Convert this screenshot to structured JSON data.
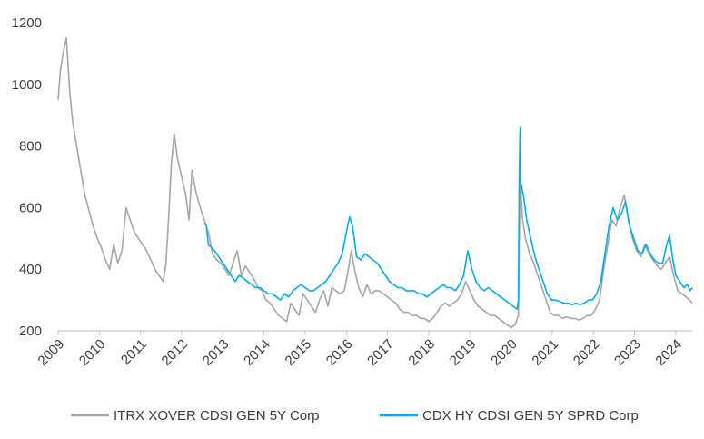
{
  "chart_data": {
    "type": "line",
    "title": "",
    "xlabel": "",
    "ylabel": "",
    "xlim": [
      2009.0,
      2024.4
    ],
    "ylim": [
      200,
      1200
    ],
    "y_ticks": [
      200,
      400,
      600,
      800,
      1000,
      1200
    ],
    "x_ticks": [
      2009,
      2010,
      2011,
      2012,
      2013,
      2014,
      2015,
      2016,
      2017,
      2018,
      2019,
      2020,
      2021,
      2022,
      2023,
      2024
    ],
    "grid": false,
    "legend_position": "bottom",
    "series": [
      {
        "name": "ITRX XOVER CDSI GEN 5Y Corp",
        "color": "#a6a6a6",
        "points": [
          [
            2009.0,
            950
          ],
          [
            2009.05,
            1040
          ],
          [
            2009.12,
            1100
          ],
          [
            2009.2,
            1150
          ],
          [
            2009.28,
            980
          ],
          [
            2009.35,
            880
          ],
          [
            2009.45,
            800
          ],
          [
            2009.55,
            720
          ],
          [
            2009.65,
            640
          ],
          [
            2009.75,
            590
          ],
          [
            2009.85,
            540
          ],
          [
            2009.95,
            500
          ],
          [
            2010.05,
            470
          ],
          [
            2010.15,
            430
          ],
          [
            2010.25,
            400
          ],
          [
            2010.35,
            480
          ],
          [
            2010.45,
            420
          ],
          [
            2010.55,
            460
          ],
          [
            2010.65,
            600
          ],
          [
            2010.75,
            560
          ],
          [
            2010.85,
            520
          ],
          [
            2010.95,
            500
          ],
          [
            2011.05,
            480
          ],
          [
            2011.15,
            460
          ],
          [
            2011.25,
            430
          ],
          [
            2011.35,
            400
          ],
          [
            2011.45,
            380
          ],
          [
            2011.55,
            360
          ],
          [
            2011.62,
            420
          ],
          [
            2011.68,
            560
          ],
          [
            2011.75,
            740
          ],
          [
            2011.82,
            840
          ],
          [
            2011.9,
            760
          ],
          [
            2012.0,
            700
          ],
          [
            2012.1,
            640
          ],
          [
            2012.18,
            560
          ],
          [
            2012.25,
            720
          ],
          [
            2012.35,
            650
          ],
          [
            2012.45,
            600
          ],
          [
            2012.55,
            560
          ],
          [
            2012.65,
            520
          ],
          [
            2012.75,
            450
          ],
          [
            2012.85,
            430
          ],
          [
            2012.95,
            420
          ],
          [
            2013.05,
            400
          ],
          [
            2013.15,
            380
          ],
          [
            2013.25,
            420
          ],
          [
            2013.35,
            460
          ],
          [
            2013.45,
            380
          ],
          [
            2013.55,
            410
          ],
          [
            2013.65,
            390
          ],
          [
            2013.75,
            370
          ],
          [
            2013.85,
            340
          ],
          [
            2013.95,
            330
          ],
          [
            2014.05,
            300
          ],
          [
            2014.15,
            290
          ],
          [
            2014.25,
            270
          ],
          [
            2014.35,
            250
          ],
          [
            2014.45,
            240
          ],
          [
            2014.55,
            230
          ],
          [
            2014.65,
            290
          ],
          [
            2014.75,
            270
          ],
          [
            2014.85,
            250
          ],
          [
            2014.95,
            320
          ],
          [
            2015.05,
            300
          ],
          [
            2015.15,
            280
          ],
          [
            2015.25,
            260
          ],
          [
            2015.35,
            300
          ],
          [
            2015.45,
            330
          ],
          [
            2015.55,
            280
          ],
          [
            2015.65,
            340
          ],
          [
            2015.75,
            330
          ],
          [
            2015.85,
            320
          ],
          [
            2015.95,
            330
          ],
          [
            2016.05,
            400
          ],
          [
            2016.12,
            460
          ],
          [
            2016.2,
            400
          ],
          [
            2016.3,
            340
          ],
          [
            2016.4,
            310
          ],
          [
            2016.5,
            350
          ],
          [
            2016.6,
            320
          ],
          [
            2016.7,
            330
          ],
          [
            2016.8,
            330
          ],
          [
            2016.9,
            320
          ],
          [
            2017.0,
            310
          ],
          [
            2017.1,
            300
          ],
          [
            2017.2,
            290
          ],
          [
            2017.3,
            270
          ],
          [
            2017.4,
            260
          ],
          [
            2017.5,
            260
          ],
          [
            2017.6,
            250
          ],
          [
            2017.7,
            250
          ],
          [
            2017.8,
            240
          ],
          [
            2017.9,
            240
          ],
          [
            2018.0,
            230
          ],
          [
            2018.1,
            240
          ],
          [
            2018.2,
            260
          ],
          [
            2018.3,
            280
          ],
          [
            2018.4,
            290
          ],
          [
            2018.5,
            280
          ],
          [
            2018.6,
            290
          ],
          [
            2018.7,
            300
          ],
          [
            2018.8,
            320
          ],
          [
            2018.9,
            360
          ],
          [
            2019.0,
            330
          ],
          [
            2019.1,
            300
          ],
          [
            2019.2,
            280
          ],
          [
            2019.3,
            270
          ],
          [
            2019.4,
            260
          ],
          [
            2019.5,
            250
          ],
          [
            2019.6,
            250
          ],
          [
            2019.7,
            240
          ],
          [
            2019.8,
            230
          ],
          [
            2019.9,
            220
          ],
          [
            2020.0,
            210
          ],
          [
            2020.1,
            220
          ],
          [
            2020.18,
            250
          ],
          [
            2020.2,
            500
          ],
          [
            2020.22,
            700
          ],
          [
            2020.28,
            560
          ],
          [
            2020.35,
            500
          ],
          [
            2020.45,
            450
          ],
          [
            2020.55,
            420
          ],
          [
            2020.65,
            380
          ],
          [
            2020.75,
            340
          ],
          [
            2020.85,
            300
          ],
          [
            2020.95,
            260
          ],
          [
            2021.05,
            250
          ],
          [
            2021.15,
            250
          ],
          [
            2021.25,
            240
          ],
          [
            2021.35,
            245
          ],
          [
            2021.45,
            240
          ],
          [
            2021.55,
            240
          ],
          [
            2021.65,
            235
          ],
          [
            2021.75,
            240
          ],
          [
            2021.85,
            250
          ],
          [
            2021.95,
            250
          ],
          [
            2022.05,
            270
          ],
          [
            2022.15,
            300
          ],
          [
            2022.25,
            400
          ],
          [
            2022.35,
            480
          ],
          [
            2022.45,
            560
          ],
          [
            2022.55,
            540
          ],
          [
            2022.65,
            600
          ],
          [
            2022.75,
            640
          ],
          [
            2022.85,
            560
          ],
          [
            2022.95,
            500
          ],
          [
            2023.05,
            460
          ],
          [
            2023.15,
            440
          ],
          [
            2023.25,
            480
          ],
          [
            2023.35,
            450
          ],
          [
            2023.45,
            430
          ],
          [
            2023.55,
            410
          ],
          [
            2023.65,
            400
          ],
          [
            2023.75,
            420
          ],
          [
            2023.85,
            440
          ],
          [
            2023.95,
            380
          ],
          [
            2024.05,
            330
          ],
          [
            2024.15,
            320
          ],
          [
            2024.25,
            310
          ],
          [
            2024.33,
            300
          ],
          [
            2024.4,
            290
          ]
        ]
      },
      {
        "name": "CDX HY CDSI GEN 5Y SPRD Corp",
        "color": "#00aeef",
        "points": [
          [
            2012.55,
            550
          ],
          [
            2012.6,
            540
          ],
          [
            2012.65,
            480
          ],
          [
            2012.72,
            470
          ],
          [
            2012.8,
            460
          ],
          [
            2012.9,
            440
          ],
          [
            2013.0,
            420
          ],
          [
            2013.1,
            400
          ],
          [
            2013.2,
            380
          ],
          [
            2013.3,
            360
          ],
          [
            2013.4,
            380
          ],
          [
            2013.5,
            370
          ],
          [
            2013.6,
            360
          ],
          [
            2013.7,
            350
          ],
          [
            2013.8,
            340
          ],
          [
            2013.9,
            340
          ],
          [
            2014.0,
            330
          ],
          [
            2014.1,
            320
          ],
          [
            2014.2,
            320
          ],
          [
            2014.3,
            310
          ],
          [
            2014.4,
            300
          ],
          [
            2014.5,
            320
          ],
          [
            2014.6,
            310
          ],
          [
            2014.7,
            330
          ],
          [
            2014.8,
            340
          ],
          [
            2014.9,
            350
          ],
          [
            2015.0,
            340
          ],
          [
            2015.1,
            330
          ],
          [
            2015.2,
            330
          ],
          [
            2015.3,
            340
          ],
          [
            2015.4,
            350
          ],
          [
            2015.5,
            360
          ],
          [
            2015.6,
            380
          ],
          [
            2015.7,
            400
          ],
          [
            2015.8,
            420
          ],
          [
            2015.9,
            450
          ],
          [
            2016.0,
            520
          ],
          [
            2016.08,
            570
          ],
          [
            2016.15,
            540
          ],
          [
            2016.25,
            440
          ],
          [
            2016.35,
            430
          ],
          [
            2016.45,
            450
          ],
          [
            2016.55,
            440
          ],
          [
            2016.65,
            430
          ],
          [
            2016.75,
            420
          ],
          [
            2016.85,
            400
          ],
          [
            2016.95,
            380
          ],
          [
            2017.05,
            360
          ],
          [
            2017.15,
            350
          ],
          [
            2017.25,
            340
          ],
          [
            2017.35,
            340
          ],
          [
            2017.45,
            330
          ],
          [
            2017.55,
            330
          ],
          [
            2017.65,
            330
          ],
          [
            2017.75,
            320
          ],
          [
            2017.85,
            320
          ],
          [
            2017.95,
            310
          ],
          [
            2018.05,
            320
          ],
          [
            2018.15,
            330
          ],
          [
            2018.25,
            340
          ],
          [
            2018.35,
            350
          ],
          [
            2018.45,
            340
          ],
          [
            2018.55,
            340
          ],
          [
            2018.65,
            330
          ],
          [
            2018.75,
            350
          ],
          [
            2018.85,
            380
          ],
          [
            2018.95,
            460
          ],
          [
            2019.05,
            400
          ],
          [
            2019.15,
            360
          ],
          [
            2019.25,
            340
          ],
          [
            2019.35,
            330
          ],
          [
            2019.45,
            340
          ],
          [
            2019.55,
            330
          ],
          [
            2019.65,
            320
          ],
          [
            2019.75,
            310
          ],
          [
            2019.85,
            300
          ],
          [
            2019.95,
            290
          ],
          [
            2020.05,
            280
          ],
          [
            2020.15,
            270
          ],
          [
            2020.18,
            300
          ],
          [
            2020.2,
            700
          ],
          [
            2020.22,
            860
          ],
          [
            2020.24,
            680
          ],
          [
            2020.3,
            640
          ],
          [
            2020.38,
            560
          ],
          [
            2020.48,
            500
          ],
          [
            2020.58,
            440
          ],
          [
            2020.68,
            400
          ],
          [
            2020.78,
            360
          ],
          [
            2020.88,
            320
          ],
          [
            2020.98,
            300
          ],
          [
            2021.08,
            300
          ],
          [
            2021.18,
            295
          ],
          [
            2021.28,
            290
          ],
          [
            2021.38,
            290
          ],
          [
            2021.48,
            285
          ],
          [
            2021.58,
            290
          ],
          [
            2021.68,
            285
          ],
          [
            2021.78,
            290
          ],
          [
            2021.88,
            300
          ],
          [
            2021.98,
            300
          ],
          [
            2022.08,
            320
          ],
          [
            2022.18,
            360
          ],
          [
            2022.28,
            450
          ],
          [
            2022.38,
            540
          ],
          [
            2022.48,
            600
          ],
          [
            2022.58,
            560
          ],
          [
            2022.68,
            580
          ],
          [
            2022.78,
            620
          ],
          [
            2022.88,
            540
          ],
          [
            2022.98,
            500
          ],
          [
            2023.08,
            460
          ],
          [
            2023.18,
            450
          ],
          [
            2023.28,
            480
          ],
          [
            2023.38,
            450
          ],
          [
            2023.48,
            430
          ],
          [
            2023.58,
            420
          ],
          [
            2023.68,
            420
          ],
          [
            2023.78,
            480
          ],
          [
            2023.85,
            510
          ],
          [
            2023.92,
            440
          ],
          [
            2024.0,
            380
          ],
          [
            2024.1,
            360
          ],
          [
            2024.2,
            340
          ],
          [
            2024.28,
            350
          ],
          [
            2024.35,
            330
          ],
          [
            2024.4,
            340
          ]
        ]
      }
    ]
  },
  "legend": [
    {
      "label": "ITRX XOVER CDSI GEN 5Y Corp",
      "color": "#a6a6a6"
    },
    {
      "label": "CDX HY CDSI GEN 5Y SPRD Corp",
      "color": "#00aeef"
    }
  ]
}
